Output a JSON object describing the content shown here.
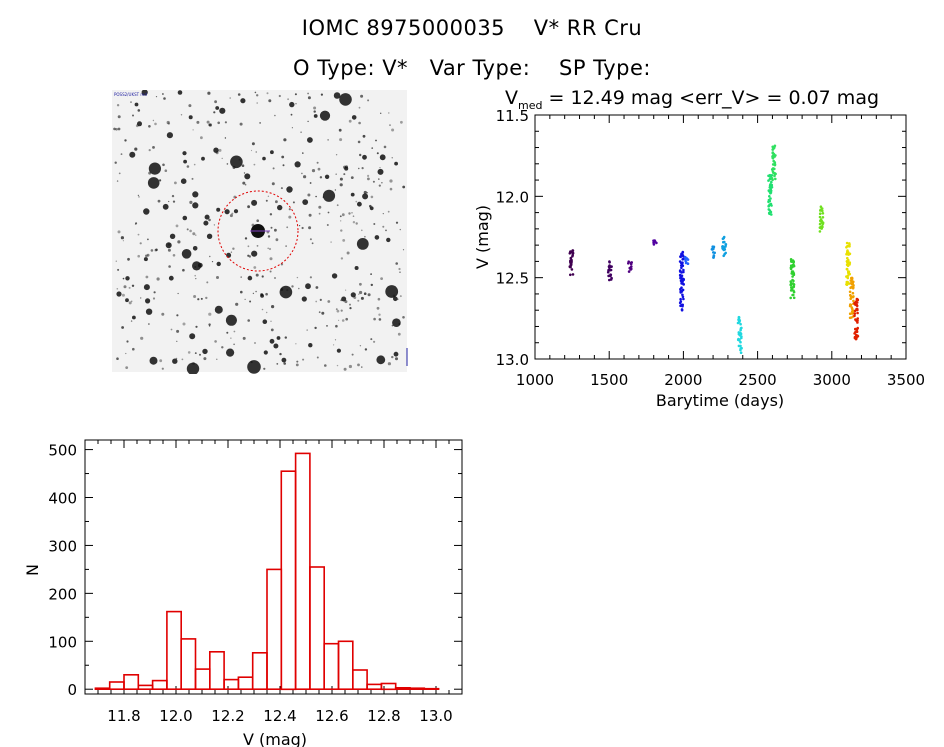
{
  "header": {
    "line1": "IOMC 8975000035    V* RR Cru",
    "line2": "O Type: V*   Var Type:    SP Type:"
  },
  "colors": {
    "histogram_bar": "#e00000",
    "finder_circle": "#e00000",
    "axes": "#000000"
  },
  "chart_data": [
    {
      "type": "scatter",
      "title_prefix": "V",
      "title_subscript": "med",
      "title_rest": " = 12.49 mag <err_V> = 0.07 mag",
      "xlabel": "Barytime (days)",
      "ylabel": "V (mag)",
      "xlim": [
        1000,
        3500
      ],
      "ylim": [
        13.0,
        11.5
      ],
      "y_inverted": true,
      "xticks": [
        1000,
        1500,
        2000,
        2500,
        3000,
        3500
      ],
      "yticks": [
        "11.5",
        "12.0",
        "12.5",
        "13.0"
      ],
      "grid": false,
      "legend": "none",
      "clusters": [
        {
          "x": 1245,
          "ymin": 12.32,
          "ymax": 12.49,
          "color": "#400050"
        },
        {
          "x": 1505,
          "ymin": 12.4,
          "ymax": 12.52,
          "color": "#400060"
        },
        {
          "x": 1640,
          "ymin": 12.4,
          "ymax": 12.47,
          "color": "#500080"
        },
        {
          "x": 1810,
          "ymin": 12.27,
          "ymax": 12.3,
          "color": "#5000a0"
        },
        {
          "x": 1990,
          "ymin": 12.34,
          "ymax": 12.71,
          "color": "#1010e0"
        },
        {
          "x": 2020,
          "ymin": 12.37,
          "ymax": 12.42,
          "color": "#2060ff"
        },
        {
          "x": 2200,
          "ymin": 12.3,
          "ymax": 12.38,
          "color": "#1090e0"
        },
        {
          "x": 2275,
          "ymin": 12.25,
          "ymax": 12.38,
          "color": "#10a0e0"
        },
        {
          "x": 2380,
          "ymin": 12.74,
          "ymax": 12.97,
          "color": "#20d8e0"
        },
        {
          "x": 2585,
          "ymin": 11.87,
          "ymax": 12.12,
          "color": "#20e070"
        },
        {
          "x": 2610,
          "ymin": 11.68,
          "ymax": 11.9,
          "color": "#30e060"
        },
        {
          "x": 2735,
          "ymin": 12.37,
          "ymax": 12.63,
          "color": "#30d030"
        },
        {
          "x": 2930,
          "ymin": 12.06,
          "ymax": 12.22,
          "color": "#70e020"
        },
        {
          "x": 3110,
          "ymin": 12.28,
          "ymax": 12.55,
          "color": "#e8e000"
        },
        {
          "x": 3135,
          "ymin": 12.5,
          "ymax": 12.75,
          "color": "#f0a000"
        },
        {
          "x": 3165,
          "ymin": 12.63,
          "ymax": 12.88,
          "color": "#e02000"
        }
      ]
    },
    {
      "type": "bar",
      "xlabel": "V (mag)",
      "ylabel": "N",
      "xlim": [
        11.65,
        13.1
      ],
      "ylim": [
        -10,
        520
      ],
      "xticks": [
        "11.8",
        "12.0",
        "12.2",
        "12.4",
        "12.6",
        "12.8",
        "13.0"
      ],
      "yticks": [
        "0",
        "100",
        "200",
        "300",
        "400",
        "500"
      ],
      "bin_width": 0.055,
      "bin_starts": [
        11.69,
        11.745,
        11.8,
        11.855,
        11.91,
        11.965,
        12.02,
        12.075,
        12.13,
        12.185,
        12.24,
        12.295,
        12.35,
        12.405,
        12.46,
        12.515,
        12.57,
        12.625,
        12.68,
        12.735,
        12.79,
        12.845,
        12.9,
        12.955
      ],
      "counts": [
        2,
        15,
        30,
        8,
        18,
        162,
        105,
        42,
        78,
        20,
        25,
        76,
        250,
        455,
        492,
        255,
        95,
        100,
        40,
        10,
        12,
        3,
        2,
        1
      ],
      "grid": false,
      "legend": "none"
    }
  ],
  "finder": {
    "top_left_label": "POSS2/UKST red",
    "marker_label": "",
    "bottom_left_label": "",
    "bottom_center_label": "",
    "image_colors": {
      "background": "#f2f2f2",
      "star": "#101010"
    }
  }
}
